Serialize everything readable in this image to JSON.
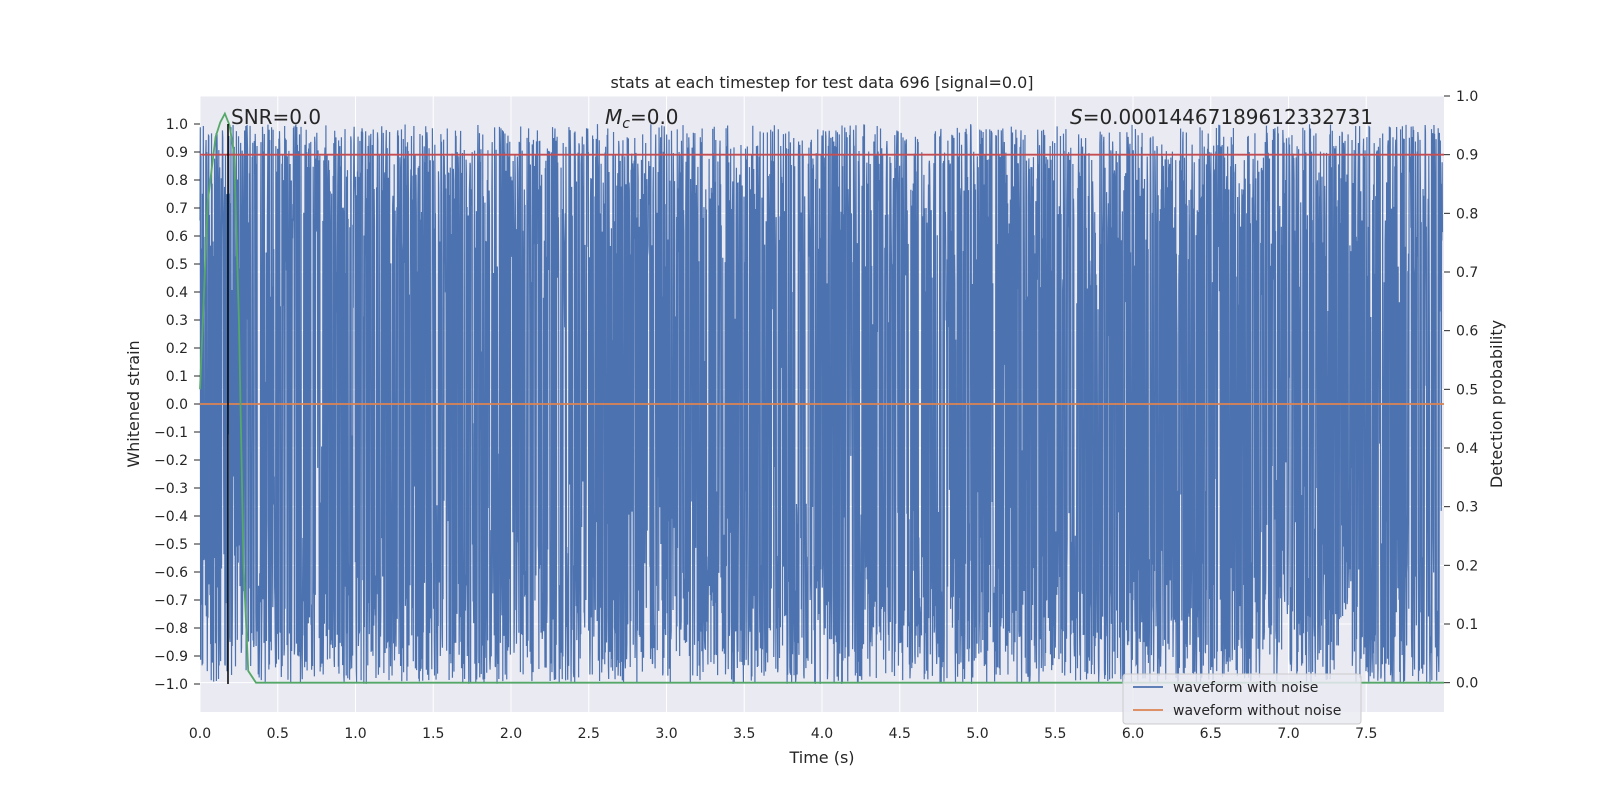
{
  "chart_data": {
    "type": "line",
    "title": "stats at each timestep for test data 696 [signal=0.0]",
    "xlabel": "Time (s)",
    "ylabel": "Whitened strain",
    "y2label": "Detection probability",
    "xlim": [
      0.0,
      8.0
    ],
    "ylim": [
      -1.1,
      1.1
    ],
    "y2lim": [
      -0.05,
      1.0
    ],
    "x_ticks": [
      "0.0",
      "0.5",
      "1.0",
      "1.5",
      "2.0",
      "2.5",
      "3.0",
      "3.5",
      "4.0",
      "4.5",
      "5.0",
      "5.5",
      "6.0",
      "6.5",
      "7.0",
      "7.5"
    ],
    "y_ticks": [
      "1.0",
      "0.9",
      "0.8",
      "0.7",
      "0.6",
      "0.5",
      "0.4",
      "0.3",
      "0.2",
      "0.1",
      "0.0",
      "−0.1",
      "−0.2",
      "−0.3",
      "−0.4",
      "−0.5",
      "−0.6",
      "−0.7",
      "−0.8",
      "−0.9",
      "−1.0"
    ],
    "y2_ticks": [
      "1.0",
      "0.9",
      "0.8",
      "0.7",
      "0.6",
      "0.5",
      "0.4",
      "0.3",
      "0.2",
      "0.1",
      "0.0"
    ],
    "annotations": {
      "snr": "SNR=0.0",
      "mc_symbol": "M",
      "mc_sub": "c",
      "mc_value": "=0.0",
      "s_symbol": "S",
      "s_value": "=0.00014467189612332731"
    },
    "series": [
      {
        "name": "waveform with noise",
        "axis": "left",
        "color": "#4c72b0",
        "description_values": "dense noise filling approximately -1.0 to 1.0 across 0-8 s"
      },
      {
        "name": "waveform without noise",
        "axis": "left",
        "color": "#dd8452",
        "x": [
          0.0,
          8.0
        ],
        "y": [
          0.0,
          0.0
        ]
      },
      {
        "name": "",
        "axis": "right",
        "color": "#55a868",
        "x": [
          0.0,
          0.05,
          0.1,
          0.13,
          0.16,
          0.19,
          0.22,
          0.25,
          0.28,
          0.31,
          0.36,
          8.0
        ],
        "y": [
          0.5,
          0.82,
          0.93,
          0.955,
          0.97,
          0.95,
          0.9,
          0.62,
          0.2,
          0.02,
          0.0,
          0.0
        ]
      },
      {
        "name": "",
        "axis": "right",
        "color": "#c44e52",
        "x": [
          0.0,
          8.0
        ],
        "y": [
          0.9,
          0.9
        ]
      }
    ],
    "vline": {
      "x": 0.18,
      "color": "#000000"
    },
    "legend": {
      "placement": "lower-right",
      "entries": [
        {
          "label": "waveform with noise",
          "color": "#4c72b0"
        },
        {
          "label": "waveform without noise",
          "color": "#dd8452"
        }
      ]
    },
    "style": {
      "background": "#eaeaf2",
      "grid": true,
      "grid_color": "#ffffff"
    }
  }
}
